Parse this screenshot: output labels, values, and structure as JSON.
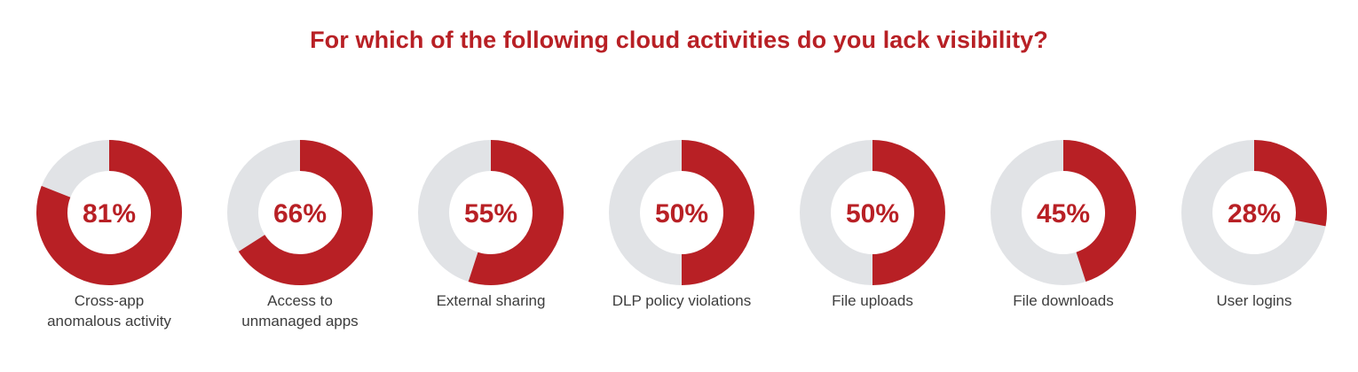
{
  "chart_data": {
    "type": "pie",
    "title": "For which of the following cloud activities do you lack visibility?",
    "categories": [
      "Cross-app anomalous activity",
      "Access to unmanaged apps",
      "External sharing",
      "DLP policy violations",
      "File uploads",
      "File downloads",
      "User logins"
    ],
    "values": [
      81,
      66,
      55,
      50,
      50,
      45,
      28
    ],
    "value_labels": [
      "81%",
      "66%",
      "55%",
      "50%",
      "50%",
      "45%",
      "28%"
    ],
    "label_lines": [
      [
        "Cross-app",
        "anomalous activity"
      ],
      [
        "Access to",
        "unmanaged apps"
      ],
      [
        "External sharing"
      ],
      [
        "DLP policy violations"
      ],
      [
        "File uploads"
      ],
      [
        "File downloads"
      ],
      [
        "User logins"
      ]
    ],
    "unit": "%",
    "colors": {
      "filled": "#b82025",
      "remainder": "#e1e3e6",
      "value_text": "#b82025",
      "label_text": "#3d3d3d"
    }
  }
}
